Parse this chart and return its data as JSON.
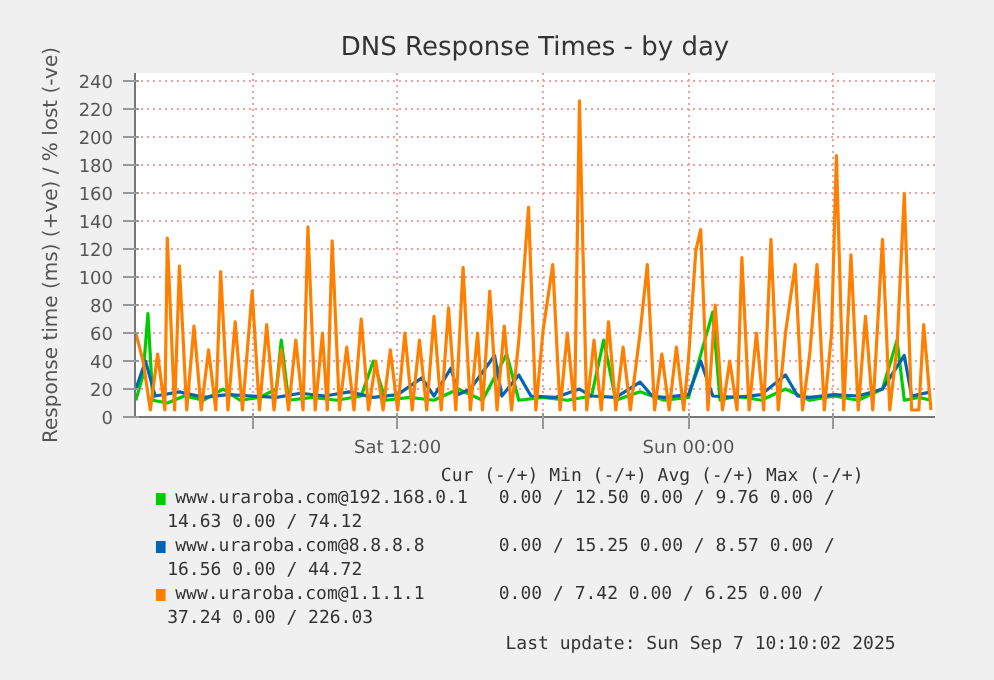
{
  "chart_data": {
    "type": "line",
    "title": "DNS Response Times - by day",
    "ylabel": "Response time (ms) (+ve) / % lost (-ve)",
    "xlim": [
      "2025-09-06T01:10",
      "2025-09-07T10:10"
    ],
    "xticks": [
      {
        "value": "2025-09-06T06:00",
        "label": null
      },
      {
        "value": "2025-09-06T12:00",
        "label": "Sat 12:00"
      },
      {
        "value": "2025-09-06T18:00",
        "label": null
      },
      {
        "value": "2025-09-07T00:00",
        "label": "Sun 00:00"
      },
      {
        "value": "2025-09-07T06:00",
        "label": null
      }
    ],
    "ylim": [
      0,
      246
    ],
    "yticks": [
      0,
      20,
      40,
      60,
      80,
      100,
      120,
      140,
      160,
      180,
      200,
      220,
      240
    ],
    "grid": true,
    "legend": "bottom",
    "line_style": "solid",
    "series": [
      {
        "name": "www.uraroba.com@192.168.0.1",
        "color": "#00cc00",
        "x": [
          "2025-09-06T01:12",
          "2025-09-06T01:30",
          "2025-09-06T01:42",
          "2025-09-06T01:54",
          "2025-09-06T02:30",
          "2025-09-06T03:12",
          "2025-09-06T04:00",
          "2025-09-06T04:48",
          "2025-09-06T05:30",
          "2025-09-06T06:18",
          "2025-09-06T07:00",
          "2025-09-06T07:12",
          "2025-09-06T07:30",
          "2025-09-06T08:30",
          "2025-09-06T09:30",
          "2025-09-06T10:30",
          "2025-09-06T11:00",
          "2025-09-06T11:30",
          "2025-09-06T12:30",
          "2025-09-06T13:30",
          "2025-09-06T14:30",
          "2025-09-06T15:30",
          "2025-09-06T16:30",
          "2025-09-06T17:00",
          "2025-09-06T18:00",
          "2025-09-06T19:00",
          "2025-09-06T20:00",
          "2025-09-06T20:30",
          "2025-09-06T21:00",
          "2025-09-06T22:00",
          "2025-09-06T23:00",
          "2025-09-07T00:00",
          "2025-09-07T01:00",
          "2025-09-07T01:18",
          "2025-09-07T02:00",
          "2025-09-07T03:00",
          "2025-09-07T04:00",
          "2025-09-07T05:00",
          "2025-09-07T06:00",
          "2025-09-07T07:00",
          "2025-09-07T08:00",
          "2025-09-07T08:36",
          "2025-09-07T08:54",
          "2025-09-07T09:30",
          "2025-09-07T10:00"
        ],
        "values": [
          12,
          30,
          74,
          12,
          10,
          15,
          12,
          20,
          12,
          14,
          20,
          55,
          12,
          14,
          12,
          15,
          40,
          12,
          14,
          12,
          20,
          12,
          45,
          12,
          14,
          12,
          15,
          55,
          12,
          18,
          12,
          14,
          75,
          12,
          15,
          12,
          20,
          12,
          15,
          12,
          20,
          55,
          12,
          14,
          12
        ]
      },
      {
        "name": "www.uraroba.com@8.8.8.8",
        "color": "#0066b3",
        "x": [
          "2025-09-06T01:12",
          "2025-09-06T01:36",
          "2025-09-06T02:00",
          "2025-09-06T03:00",
          "2025-09-06T04:00",
          "2025-09-06T05:00",
          "2025-09-06T06:00",
          "2025-09-06T07:00",
          "2025-09-06T08:00",
          "2025-09-06T09:00",
          "2025-09-06T10:00",
          "2025-09-06T11:00",
          "2025-09-06T12:00",
          "2025-09-06T13:00",
          "2025-09-06T13:30",
          "2025-09-06T14:12",
          "2025-09-06T14:30",
          "2025-09-06T15:00",
          "2025-09-06T16:00",
          "2025-09-06T16:18",
          "2025-09-06T17:00",
          "2025-09-06T17:30",
          "2025-09-06T18:30",
          "2025-09-06T19:30",
          "2025-09-06T20:00",
          "2025-09-06T21:00",
          "2025-09-06T22:00",
          "2025-09-06T22:30",
          "2025-09-06T23:00",
          "2025-09-07T00:00",
          "2025-09-07T00:30",
          "2025-09-07T01:00",
          "2025-09-07T02:00",
          "2025-09-07T03:00",
          "2025-09-07T04:00",
          "2025-09-07T04:30",
          "2025-09-07T05:00",
          "2025-09-07T06:00",
          "2025-09-07T07:00",
          "2025-09-07T08:00",
          "2025-09-07T08:54",
          "2025-09-07T09:12",
          "2025-09-07T10:00"
        ],
        "values": [
          20,
          40,
          15,
          18,
          14,
          16,
          15,
          14,
          17,
          15,
          18,
          14,
          16,
          28,
          15,
          35,
          16,
          20,
          44,
          15,
          30,
          15,
          14,
          20,
          15,
          14,
          25,
          15,
          14,
          16,
          40,
          15,
          14,
          16,
          30,
          15,
          14,
          16,
          15,
          20,
          44,
          15,
          18
        ]
      },
      {
        "name": "www.uraroba.com@1.1.1.1",
        "color": "#ff8000",
        "x": [
          "2025-09-06T01:12",
          "2025-09-06T01:30",
          "2025-09-06T01:48",
          "2025-09-06T02:06",
          "2025-09-06T02:24",
          "2025-09-06T02:30",
          "2025-09-06T02:48",
          "2025-09-06T03:00",
          "2025-09-06T03:18",
          "2025-09-06T03:36",
          "2025-09-06T03:54",
          "2025-09-06T04:12",
          "2025-09-06T04:30",
          "2025-09-06T04:42",
          "2025-09-06T05:00",
          "2025-09-06T05:18",
          "2025-09-06T05:36",
          "2025-09-06T06:00",
          "2025-09-06T06:18",
          "2025-09-06T06:36",
          "2025-09-06T06:54",
          "2025-09-06T07:12",
          "2025-09-06T07:30",
          "2025-09-06T07:48",
          "2025-09-06T08:06",
          "2025-09-06T08:18",
          "2025-09-06T08:36",
          "2025-09-06T08:54",
          "2025-09-06T09:06",
          "2025-09-06T09:18",
          "2025-09-06T09:36",
          "2025-09-06T09:54",
          "2025-09-06T10:12",
          "2025-09-06T10:30",
          "2025-09-06T10:48",
          "2025-09-06T11:06",
          "2025-09-06T11:24",
          "2025-09-06T11:42",
          "2025-09-06T12:00",
          "2025-09-06T12:18",
          "2025-09-06T12:36",
          "2025-09-06T12:54",
          "2025-09-06T13:12",
          "2025-09-06T13:30",
          "2025-09-06T13:48",
          "2025-09-06T14:06",
          "2025-09-06T14:24",
          "2025-09-06T14:42",
          "2025-09-06T15:00",
          "2025-09-06T15:18",
          "2025-09-06T15:30",
          "2025-09-06T15:48",
          "2025-09-06T16:06",
          "2025-09-06T16:24",
          "2025-09-06T16:42",
          "2025-09-06T17:00",
          "2025-09-06T17:24",
          "2025-09-06T17:42",
          "2025-09-06T18:00",
          "2025-09-06T18:24",
          "2025-09-06T18:42",
          "2025-09-06T19:00",
          "2025-09-06T19:18",
          "2025-09-06T19:30",
          "2025-09-06T19:48",
          "2025-09-06T20:06",
          "2025-09-06T20:24",
          "2025-09-06T20:42",
          "2025-09-06T21:00",
          "2025-09-06T21:18",
          "2025-09-06T21:36",
          "2025-09-06T22:00",
          "2025-09-06T22:18",
          "2025-09-06T22:36",
          "2025-09-06T22:54",
          "2025-09-06T23:12",
          "2025-09-06T23:30",
          "2025-09-06T23:48",
          "2025-09-07T00:00",
          "2025-09-07T00:18",
          "2025-09-07T00:30",
          "2025-09-07T00:48",
          "2025-09-07T01:06",
          "2025-09-07T01:24",
          "2025-09-07T01:42",
          "2025-09-07T02:00",
          "2025-09-07T02:12",
          "2025-09-07T02:30",
          "2025-09-07T02:48",
          "2025-09-07T03:06",
          "2025-09-07T03:24",
          "2025-09-07T03:42",
          "2025-09-07T04:00",
          "2025-09-07T04:24",
          "2025-09-07T04:42",
          "2025-09-07T05:00",
          "2025-09-07T05:18",
          "2025-09-07T05:36",
          "2025-09-07T05:54",
          "2025-09-07T06:06",
          "2025-09-07T06:24",
          "2025-09-07T06:42",
          "2025-09-07T07:00",
          "2025-09-07T07:18",
          "2025-09-07T07:36",
          "2025-09-07T08:00",
          "2025-09-07T08:18",
          "2025-09-07T08:36",
          "2025-09-07T08:54",
          "2025-09-07T09:12",
          "2025-09-07T09:30",
          "2025-09-07T09:42",
          "2025-09-07T10:00"
        ],
        "values": [
          60,
          40,
          5,
          45,
          5,
          128,
          5,
          108,
          5,
          65,
          5,
          48,
          5,
          104,
          5,
          68,
          5,
          90,
          5,
          66,
          5,
          48,
          5,
          55,
          5,
          136,
          5,
          60,
          5,
          126,
          5,
          50,
          5,
          70,
          5,
          40,
          5,
          48,
          5,
          60,
          5,
          55,
          5,
          72,
          5,
          78,
          5,
          107,
          5,
          60,
          5,
          90,
          5,
          65,
          5,
          55,
          150,
          5,
          62,
          109,
          5,
          60,
          5,
          226,
          5,
          55,
          5,
          68,
          5,
          50,
          5,
          60,
          109,
          5,
          45,
          5,
          50,
          5,
          42,
          119,
          134,
          5,
          80,
          5,
          40,
          5,
          114,
          5,
          60,
          5,
          127,
          5,
          60,
          109,
          5,
          45,
          109,
          5,
          60,
          187,
          5,
          116,
          5,
          72,
          5,
          127,
          5,
          50,
          160,
          5,
          5,
          66,
          5
        ]
      }
    ],
    "annotations": [
      "Cur (-/+)    Min (-/+)    Avg (-/+)    Max (-/+)",
      "0.00 /  12.50       0.00 /   9.76       0.00 /",
      "14.63                    0.00 /                        74.12",
      "0.00 /  15.25       0.00 /   8.57       0.00 /",
      "16.56                    0.00 /                        44.72",
      "0.00 /   7.42       0.00 /   6.25       0.00 /",
      "37.24                    0.00 /                       226.03",
      "Last update:  Sun Sep  7 10:10:02 2025"
    ]
  }
}
